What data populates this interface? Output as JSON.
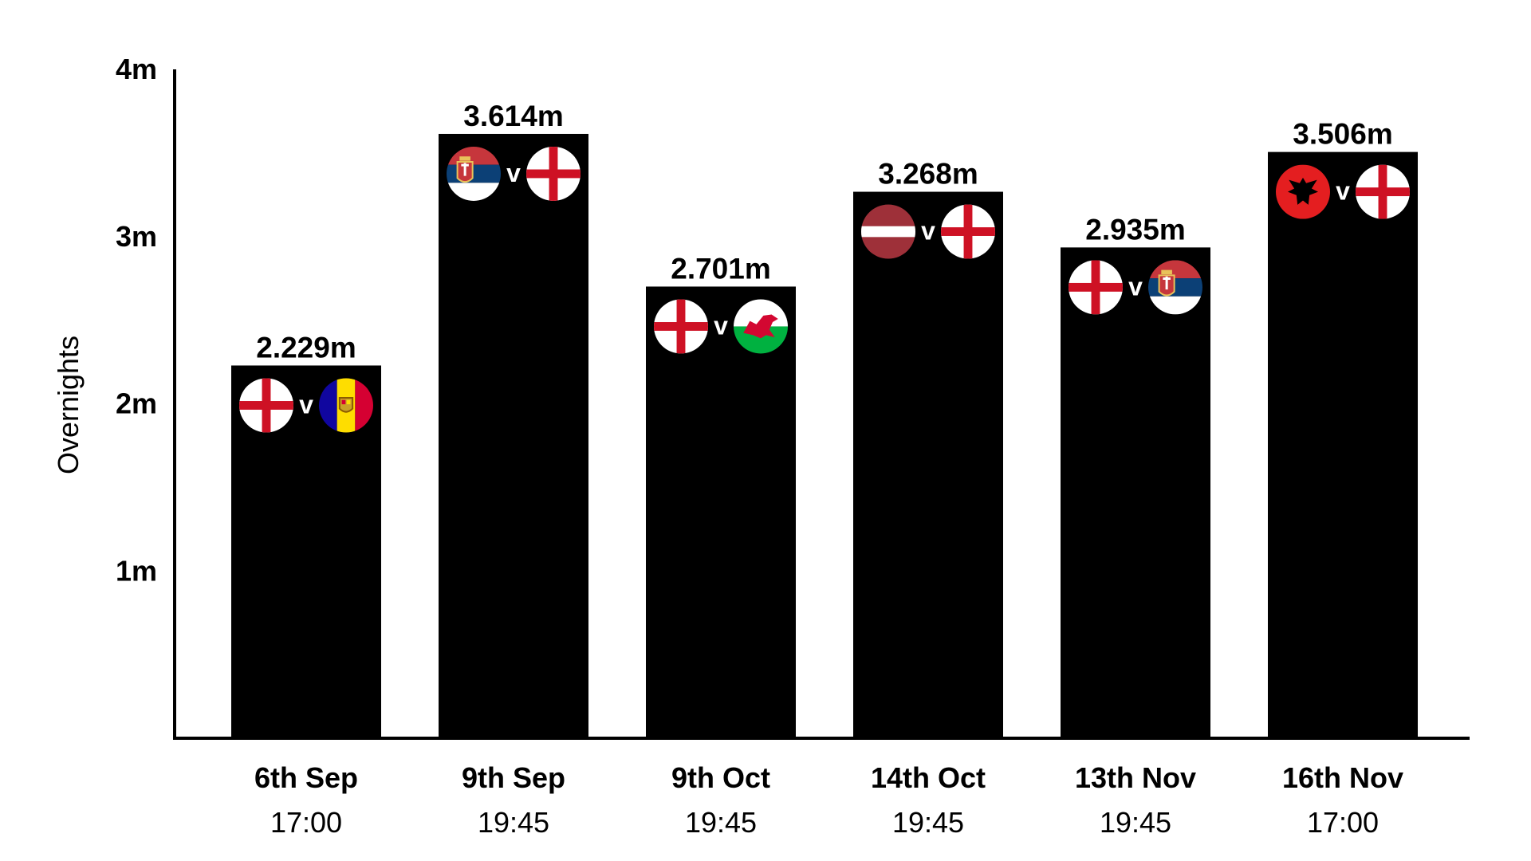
{
  "chart_data": {
    "type": "bar",
    "title": "",
    "xlabel": "",
    "ylabel": "Overnights",
    "ylim": [
      0,
      4
    ],
    "yticks": [
      {
        "value": 1,
        "label": "1m"
      },
      {
        "value": 2,
        "label": "2m"
      },
      {
        "value": 3,
        "label": "3m"
      },
      {
        "value": 4,
        "label": "4m"
      }
    ],
    "categories": [
      "6th Sep",
      "9th Sep",
      "9th Oct",
      "14th Oct",
      "13th Nov",
      "16th Nov"
    ],
    "times": [
      "17:00",
      "19:45",
      "19:45",
      "19:45",
      "19:45",
      "17:00"
    ],
    "values": [
      2.229,
      3.614,
      2.701,
      3.268,
      2.935,
      3.506
    ],
    "value_labels": [
      "2.229m",
      "3.614m",
      "2.701m",
      "3.268m",
      "2.935m",
      "3.506m"
    ],
    "matchups": [
      {
        "home": "england-flag-icon",
        "away": "andorra-flag-icon"
      },
      {
        "home": "serbia-flag-icon",
        "away": "england-flag-icon"
      },
      {
        "home": "england-flag-icon",
        "away": "wales-flag-icon"
      },
      {
        "home": "latvia-flag-icon",
        "away": "england-flag-icon"
      },
      {
        "home": "england-flag-icon",
        "away": "serbia-flag-icon"
      },
      {
        "home": "albania-flag-icon",
        "away": "england-flag-icon"
      }
    ],
    "versus_text": "v",
    "bar_color": "#000000",
    "grid": false,
    "legend": "none"
  }
}
